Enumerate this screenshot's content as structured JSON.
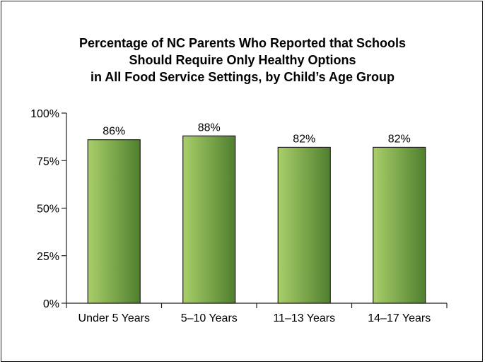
{
  "chart_data": {
    "type": "bar",
    "title_lines": [
      "Percentage of NC Parents Who Reported that Schools",
      "Should Require Only Healthy Options",
      "in All Food Service Settings, by Child’s Age Group"
    ],
    "categories": [
      "Under 5 Years",
      "5–10 Years",
      "11–13 Years",
      "14–17 Years"
    ],
    "values": [
      86,
      88,
      82,
      82
    ],
    "value_labels": [
      "86%",
      "88%",
      "82%",
      "82%"
    ],
    "xlabel": "",
    "ylabel": "",
    "ylim": [
      0,
      100
    ],
    "y_ticks": [
      0,
      25,
      50,
      75,
      100
    ],
    "y_tick_labels": [
      "0%",
      "25%",
      "50%",
      "75%",
      "100%"
    ],
    "grid": false,
    "legend": "none",
    "colors": {
      "bar_light": "#a9cf6a",
      "bar_dark": "#4f7f2e",
      "bar_edge": "#231f20",
      "axis": "#231f20"
    }
  }
}
